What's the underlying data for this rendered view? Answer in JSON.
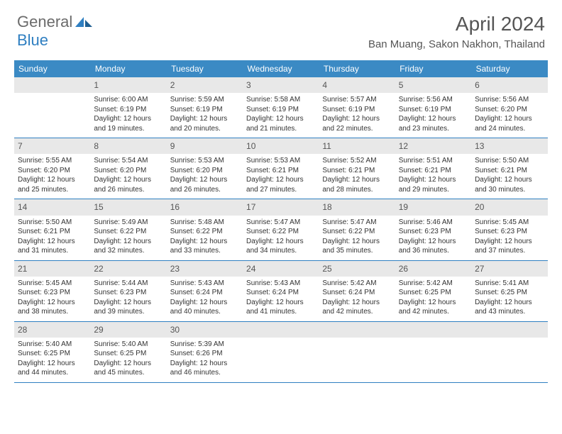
{
  "logo": {
    "part1": "General",
    "part2": "Blue"
  },
  "title": "April 2024",
  "location": "Ban Muang, Sakon Nakhon, Thailand",
  "day_names": [
    "Sunday",
    "Monday",
    "Tuesday",
    "Wednesday",
    "Thursday",
    "Friday",
    "Saturday"
  ],
  "colors": {
    "header_bg": "#3b8ac4",
    "header_text": "#ffffff",
    "border": "#2f7fc1",
    "daynum_bg": "#e8e8e8",
    "text": "#333333",
    "logo_gray": "#6b6b6b",
    "logo_blue": "#2f7fc1"
  },
  "first_weekday": 1,
  "days": [
    {
      "n": 1,
      "sr": "6:00 AM",
      "ss": "6:19 PM",
      "dl": "12 hours and 19 minutes."
    },
    {
      "n": 2,
      "sr": "5:59 AM",
      "ss": "6:19 PM",
      "dl": "12 hours and 20 minutes."
    },
    {
      "n": 3,
      "sr": "5:58 AM",
      "ss": "6:19 PM",
      "dl": "12 hours and 21 minutes."
    },
    {
      "n": 4,
      "sr": "5:57 AM",
      "ss": "6:19 PM",
      "dl": "12 hours and 22 minutes."
    },
    {
      "n": 5,
      "sr": "5:56 AM",
      "ss": "6:19 PM",
      "dl": "12 hours and 23 minutes."
    },
    {
      "n": 6,
      "sr": "5:56 AM",
      "ss": "6:20 PM",
      "dl": "12 hours and 24 minutes."
    },
    {
      "n": 7,
      "sr": "5:55 AM",
      "ss": "6:20 PM",
      "dl": "12 hours and 25 minutes."
    },
    {
      "n": 8,
      "sr": "5:54 AM",
      "ss": "6:20 PM",
      "dl": "12 hours and 26 minutes."
    },
    {
      "n": 9,
      "sr": "5:53 AM",
      "ss": "6:20 PM",
      "dl": "12 hours and 26 minutes."
    },
    {
      "n": 10,
      "sr": "5:53 AM",
      "ss": "6:21 PM",
      "dl": "12 hours and 27 minutes."
    },
    {
      "n": 11,
      "sr": "5:52 AM",
      "ss": "6:21 PM",
      "dl": "12 hours and 28 minutes."
    },
    {
      "n": 12,
      "sr": "5:51 AM",
      "ss": "6:21 PM",
      "dl": "12 hours and 29 minutes."
    },
    {
      "n": 13,
      "sr": "5:50 AM",
      "ss": "6:21 PM",
      "dl": "12 hours and 30 minutes."
    },
    {
      "n": 14,
      "sr": "5:50 AM",
      "ss": "6:21 PM",
      "dl": "12 hours and 31 minutes."
    },
    {
      "n": 15,
      "sr": "5:49 AM",
      "ss": "6:22 PM",
      "dl": "12 hours and 32 minutes."
    },
    {
      "n": 16,
      "sr": "5:48 AM",
      "ss": "6:22 PM",
      "dl": "12 hours and 33 minutes."
    },
    {
      "n": 17,
      "sr": "5:47 AM",
      "ss": "6:22 PM",
      "dl": "12 hours and 34 minutes."
    },
    {
      "n": 18,
      "sr": "5:47 AM",
      "ss": "6:22 PM",
      "dl": "12 hours and 35 minutes."
    },
    {
      "n": 19,
      "sr": "5:46 AM",
      "ss": "6:23 PM",
      "dl": "12 hours and 36 minutes."
    },
    {
      "n": 20,
      "sr": "5:45 AM",
      "ss": "6:23 PM",
      "dl": "12 hours and 37 minutes."
    },
    {
      "n": 21,
      "sr": "5:45 AM",
      "ss": "6:23 PM",
      "dl": "12 hours and 38 minutes."
    },
    {
      "n": 22,
      "sr": "5:44 AM",
      "ss": "6:23 PM",
      "dl": "12 hours and 39 minutes."
    },
    {
      "n": 23,
      "sr": "5:43 AM",
      "ss": "6:24 PM",
      "dl": "12 hours and 40 minutes."
    },
    {
      "n": 24,
      "sr": "5:43 AM",
      "ss": "6:24 PM",
      "dl": "12 hours and 41 minutes."
    },
    {
      "n": 25,
      "sr": "5:42 AM",
      "ss": "6:24 PM",
      "dl": "12 hours and 42 minutes."
    },
    {
      "n": 26,
      "sr": "5:42 AM",
      "ss": "6:25 PM",
      "dl": "12 hours and 42 minutes."
    },
    {
      "n": 27,
      "sr": "5:41 AM",
      "ss": "6:25 PM",
      "dl": "12 hours and 43 minutes."
    },
    {
      "n": 28,
      "sr": "5:40 AM",
      "ss": "6:25 PM",
      "dl": "12 hours and 44 minutes."
    },
    {
      "n": 29,
      "sr": "5:40 AM",
      "ss": "6:25 PM",
      "dl": "12 hours and 45 minutes."
    },
    {
      "n": 30,
      "sr": "5:39 AM",
      "ss": "6:26 PM",
      "dl": "12 hours and 46 minutes."
    }
  ],
  "labels": {
    "sunrise": "Sunrise:",
    "sunset": "Sunset:",
    "daylight": "Daylight:"
  }
}
